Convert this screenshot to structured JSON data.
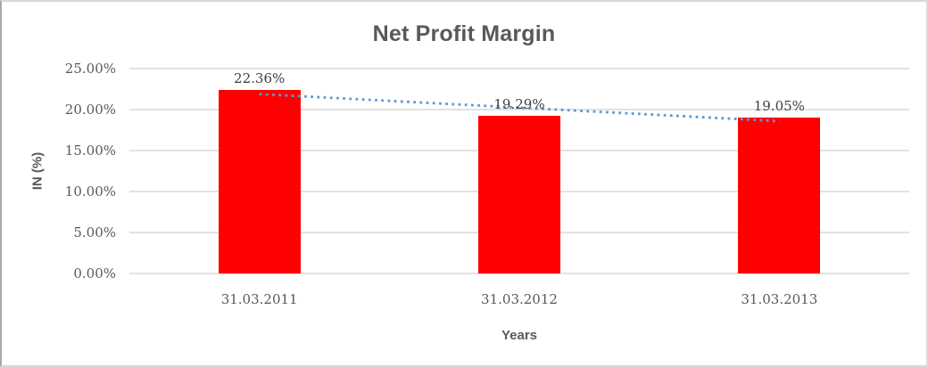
{
  "chart_data": {
    "type": "bar",
    "title": "Net Profit Margin",
    "xlabel": "Years",
    "ylabel": "IN (%)",
    "categories": [
      "31.03.2011",
      "31.03.2012",
      "31.03.2013"
    ],
    "values": [
      22.36,
      19.29,
      19.05
    ],
    "data_labels": [
      "22.36%",
      "19.29%",
      "19.05%"
    ],
    "ylim": [
      0,
      25
    ],
    "yticks": [
      {
        "value": 0,
        "label": "0.00%"
      },
      {
        "value": 5,
        "label": "5.00%"
      },
      {
        "value": 10,
        "label": "10.00%"
      },
      {
        "value": 15,
        "label": "15.00%"
      },
      {
        "value": 20,
        "label": "20.00%"
      },
      {
        "value": 25,
        "label": "25.00%"
      }
    ],
    "grid": true,
    "legend": "none",
    "bar_color": "#ff0000",
    "gridline_color": "#d9d9d9",
    "text_color": "#595959",
    "data_label_color": "#3f3f3f",
    "trendline": {
      "type": "linear",
      "style": "dotted",
      "color": "#5b9bd5"
    }
  }
}
